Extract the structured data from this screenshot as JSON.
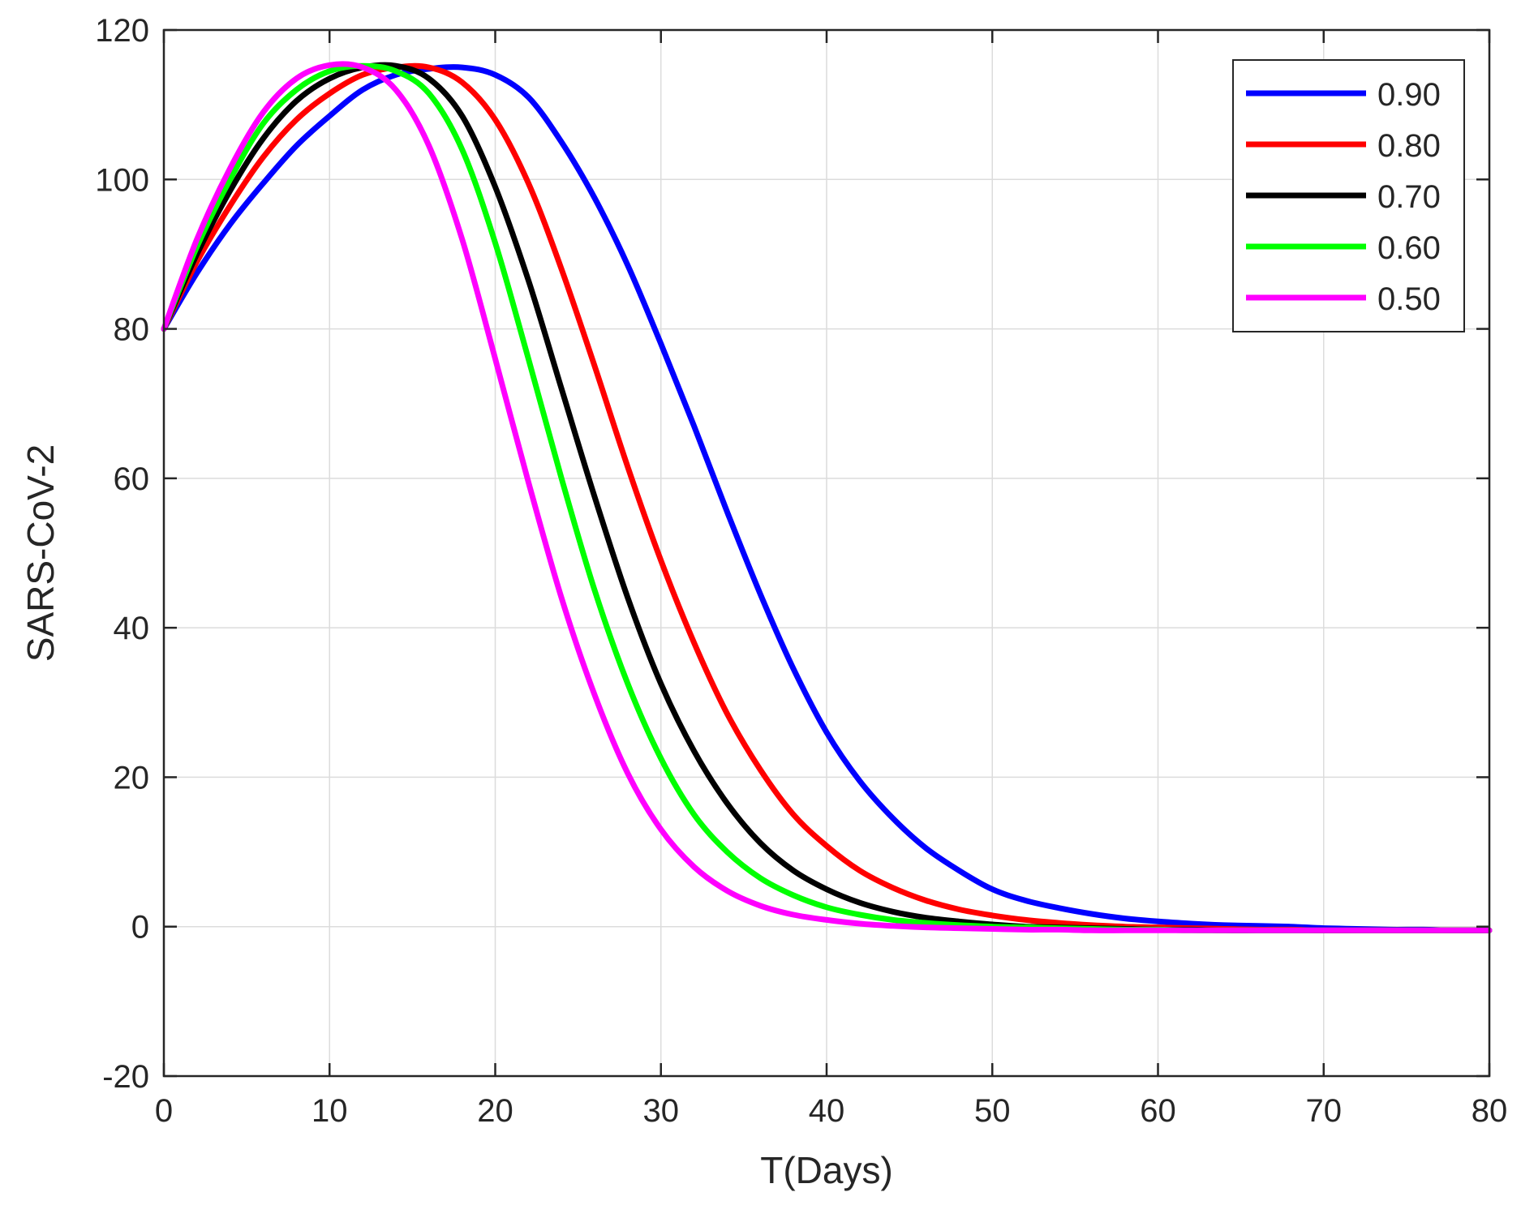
{
  "chart_data": {
    "type": "line",
    "title": "",
    "xlabel": "T(Days)",
    "ylabel": "SARS-CoV-2",
    "xlim": [
      0,
      80
    ],
    "ylim": [
      -20,
      120
    ],
    "xticks": [
      0,
      10,
      20,
      30,
      40,
      50,
      60,
      70,
      80
    ],
    "yticks": [
      -20,
      0,
      20,
      40,
      60,
      80,
      100,
      120
    ],
    "grid": true,
    "legend_position": "top-right",
    "x": [
      0,
      2,
      4,
      6,
      8,
      10,
      12,
      14,
      16,
      18,
      20,
      22,
      24,
      26,
      28,
      30,
      32,
      34,
      36,
      38,
      40,
      42,
      44,
      46,
      48,
      50,
      52,
      54,
      56,
      58,
      60,
      62,
      64,
      66,
      68,
      70,
      72,
      74,
      76,
      78,
      80
    ],
    "series": [
      {
        "name": "0.90",
        "color": "#0000ff",
        "values": [
          80,
          87.5,
          94,
          99.5,
          104.5,
          108.5,
          112,
          114,
          114.8,
          115,
          114,
          111,
          105,
          97.5,
          88.5,
          78,
          67,
          55.5,
          44.5,
          34.5,
          26,
          19.5,
          14.5,
          10.5,
          7.5,
          5,
          3.5,
          2.5,
          1.7,
          1.1,
          0.7,
          0.4,
          0.2,
          0.1,
          0,
          -0.2,
          -0.3,
          -0.4,
          -0.4,
          -0.5,
          -0.5
        ]
      },
      {
        "name": "0.80",
        "color": "#ff0000",
        "values": [
          80,
          89,
          96.5,
          103,
          108,
          111.5,
          114,
          115,
          115,
          113,
          108,
          99.5,
          88,
          75,
          61.5,
          49,
          38,
          28.5,
          21,
          15,
          10.8,
          7.5,
          5.2,
          3.5,
          2.3,
          1.5,
          0.9,
          0.5,
          0.2,
          0,
          -0.1,
          -0.2,
          -0.3,
          -0.4,
          -0.4,
          -0.5,
          -0.5,
          -0.5,
          -0.5,
          -0.5,
          -0.5
        ]
      },
      {
        "name": "0.70",
        "color": "#000000",
        "values": [
          80,
          90,
          98.5,
          105.5,
          110.5,
          113.5,
          115,
          115.2,
          113.5,
          108.5,
          99,
          86.5,
          72,
          57.5,
          44,
          32.5,
          23.5,
          16.5,
          11.2,
          7.5,
          5,
          3.2,
          2,
          1.2,
          0.7,
          0.3,
          0,
          -0.1,
          -0.2,
          -0.3,
          -0.4,
          -0.4,
          -0.5,
          -0.5,
          -0.5,
          -0.5,
          -0.5,
          -0.5,
          -0.5,
          -0.5,
          -0.5
        ]
      },
      {
        "name": "0.60",
        "color": "#00ff00",
        "values": [
          80,
          91,
          100,
          107.5,
          112,
          114.5,
          115.2,
          114.5,
          111.5,
          104,
          91.5,
          76,
          60,
          45,
          32.5,
          22.5,
          15,
          10,
          6.5,
          4.2,
          2.6,
          1.6,
          0.9,
          0.5,
          0.2,
          0,
          -0.1,
          -0.2,
          -0.3,
          -0.4,
          -0.4,
          -0.5,
          -0.5,
          -0.5,
          -0.5,
          -0.5,
          -0.5,
          -0.5,
          -0.5,
          -0.5,
          -0.5
        ]
      },
      {
        "name": "0.50",
        "color": "#ff00ff",
        "values": [
          80,
          92,
          101.5,
          109,
          113.5,
          115.3,
          115,
          112,
          104.5,
          92,
          76,
          59.5,
          44,
          31,
          20.5,
          13,
          8,
          4.8,
          2.8,
          1.6,
          0.9,
          0.4,
          0.1,
          -0.1,
          -0.2,
          -0.3,
          -0.4,
          -0.4,
          -0.5,
          -0.5,
          -0.5,
          -0.5,
          -0.5,
          -0.5,
          -0.5,
          -0.5,
          -0.5,
          -0.5,
          -0.5,
          -0.5,
          -0.5
        ]
      }
    ]
  }
}
